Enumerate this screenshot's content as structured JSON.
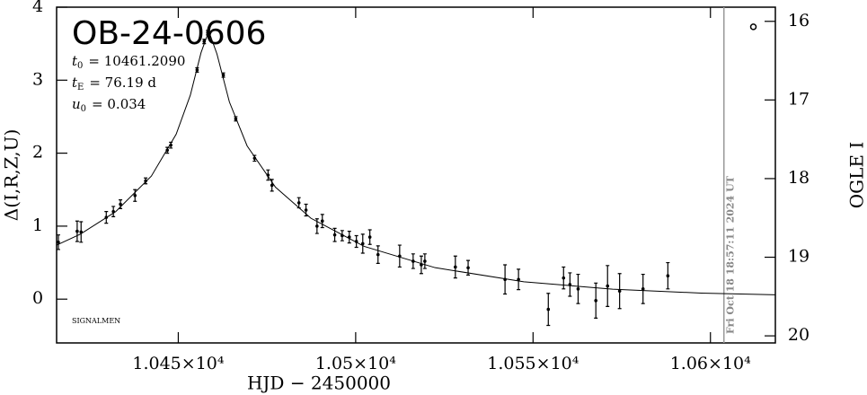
{
  "chart_data": {
    "type": "scatter",
    "title": "OB-24-0606",
    "parameters": [
      {
        "symbol": "t",
        "subscript": "0",
        "text": "= 10461.2090"
      },
      {
        "symbol": "t",
        "subscript": "E",
        "text": "= 76.19 d"
      },
      {
        "symbol": "u",
        "subscript": "0",
        "text": "= 0.034"
      }
    ],
    "corner_label": "SIGNALMEN",
    "x_label": "HJD − 2450000",
    "y_label": "Δ(I,R,Z,U)",
    "y2_label": "OGLE I",
    "timestamp": "Fri Oct 18 18:57:11 2024 UT",
    "timestamp_x": 10603.8,
    "xlim": [
      10415.7,
      10618.3
    ],
    "xticks": [
      {
        "value": 10450,
        "label": "1.045×10⁴"
      },
      {
        "value": 10500,
        "label": "1.05×10⁴"
      },
      {
        "value": 10550,
        "label": "1.055×10⁴"
      },
      {
        "value": 10600,
        "label": "1.06×10⁴"
      }
    ],
    "ylim": [
      -0.6,
      4
    ],
    "yticks": [
      0,
      1,
      2,
      3,
      4
    ],
    "y2lim": [
      20.09,
      15.82
    ],
    "y2ticks": [
      16,
      17,
      18,
      19,
      20
    ],
    "color": "#000000",
    "points": {
      "x": [
        10416.2,
        10421.5,
        10422.6,
        10429.7,
        10431.7,
        10433.7,
        10437.8,
        10440.8,
        10446.9,
        10447.9,
        10455.3,
        10457.3,
        10458.3,
        10462.7,
        10466.2,
        10471.5,
        10475.3,
        10476.4,
        10484.0,
        10486.0,
        10489.1,
        10490.6,
        10494.1,
        10496.2,
        10498.2,
        10500.2,
        10502.0,
        10504.0,
        10506.3,
        10512.4,
        10516.2,
        10518.5,
        10519.5,
        10528.1,
        10531.7,
        10542.1,
        10545.9,
        10554.3,
        10558.6,
        10560.4,
        10562.7,
        10567.7,
        10571.0,
        10574.4,
        10581.0,
        10588.0
      ],
      "y": [
        0.78,
        0.93,
        0.92,
        1.12,
        1.2,
        1.3,
        1.42,
        1.62,
        2.04,
        2.11,
        3.14,
        3.53,
        3.65,
        3.07,
        2.47,
        1.93,
        1.7,
        1.56,
        1.32,
        1.22,
        1.0,
        1.07,
        0.88,
        0.87,
        0.85,
        0.79,
        0.76,
        0.85,
        0.61,
        0.59,
        0.52,
        0.47,
        0.52,
        0.44,
        0.43,
        0.27,
        0.27,
        -0.14,
        0.29,
        0.2,
        0.14,
        -0.02,
        0.18,
        0.11,
        0.14,
        0.32
      ],
      "err": [
        0.1,
        0.14,
        0.14,
        0.08,
        0.07,
        0.06,
        0.08,
        0.04,
        0.04,
        0.04,
        0.03,
        0.03,
        0.03,
        0.03,
        0.03,
        0.04,
        0.07,
        0.08,
        0.07,
        0.08,
        0.1,
        0.09,
        0.09,
        0.07,
        0.08,
        0.08,
        0.13,
        0.1,
        0.12,
        0.15,
        0.1,
        0.12,
        0.1,
        0.15,
        0.1,
        0.2,
        0.14,
        0.22,
        0.15,
        0.16,
        0.2,
        0.24,
        0.28,
        0.24,
        0.2,
        0.18
      ]
    },
    "model": {
      "x": [
        10415.7,
        10422.4,
        10432.4,
        10442.4,
        10449.4,
        10453.4,
        10456.4,
        10458.6,
        10460.9,
        10464.4,
        10469.4,
        10477.4,
        10487.4,
        10502.4,
        10522.4,
        10547.4,
        10572.4,
        10597.4,
        10618.3
      ],
      "y": [
        0.74,
        0.891,
        1.2,
        1.685,
        2.259,
        2.795,
        3.375,
        3.672,
        3.359,
        2.702,
        2.1,
        1.534,
        1.108,
        0.723,
        0.431,
        0.238,
        0.137,
        0.083,
        0.06
      ]
    },
    "baseline_marker": {
      "x": 10612.1,
      "y2": 16.07
    }
  }
}
